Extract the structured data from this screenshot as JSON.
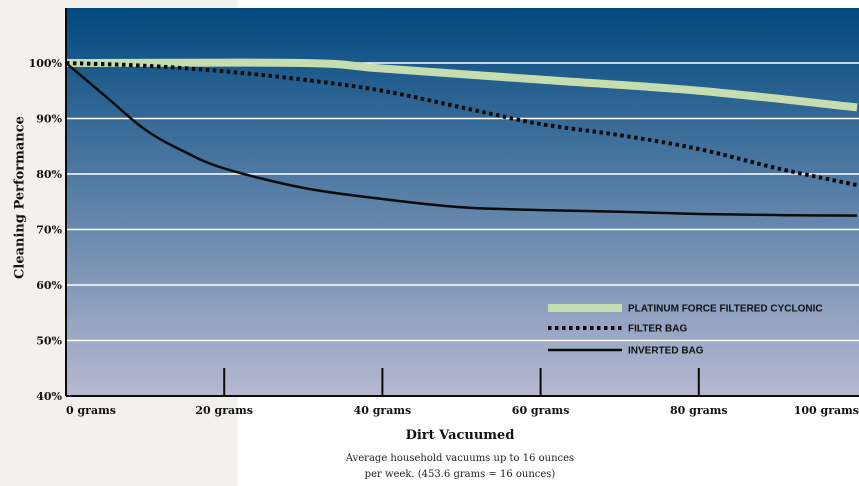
{
  "chart_data": {
    "type": "line",
    "xlabel": "Dirt Vacuumed",
    "ylabel": "Cleaning Performance",
    "x_ticks": [
      "0 grams",
      "20 grams",
      "40 grams",
      "60 grams",
      "80 grams",
      "100 grams"
    ],
    "y_ticks": [
      "100%",
      "90%",
      "80%",
      "70%",
      "60%",
      "50%",
      "40%"
    ],
    "xlim": [
      0,
      100
    ],
    "ylim": [
      40,
      100
    ],
    "grid": true,
    "legend_position": "bottom-right",
    "series": [
      {
        "name": "PLATINUM FORCE FILTERED CYCLONIC",
        "style": "thick",
        "color": "#c6ddb0",
        "x": [
          0,
          30,
          40,
          60,
          80,
          100
        ],
        "y": [
          100,
          100,
          99,
          97,
          95,
          92
        ]
      },
      {
        "name": "FILTER BAG",
        "style": "dotted",
        "color": "#0b0b0b",
        "x": [
          0,
          10,
          20,
          30,
          40,
          50,
          60,
          70,
          80,
          90,
          100
        ],
        "y": [
          100,
          99.5,
          98.5,
          97,
          95,
          92,
          89,
          87,
          84.5,
          81,
          78
        ]
      },
      {
        "name": "INVERTED BAG",
        "style": "solid",
        "color": "#0b0b0b",
        "x": [
          0,
          5,
          10,
          15,
          20,
          30,
          40,
          50,
          60,
          70,
          80,
          90,
          100
        ],
        "y": [
          100,
          94,
          88,
          84,
          81,
          77.5,
          75.5,
          74,
          73.5,
          73.2,
          72.8,
          72.6,
          72.5
        ]
      }
    ]
  },
  "footnote": {
    "line1": "Average household vacuums up to 16 ounces",
    "line2": "per week. (453.6 grams = 16 ounces)"
  },
  "colors": {
    "plot_top": "#00497f",
    "plot_bottom": "#b7b9d1",
    "grid": "#ffffff",
    "axis": "#0b0b0b"
  }
}
